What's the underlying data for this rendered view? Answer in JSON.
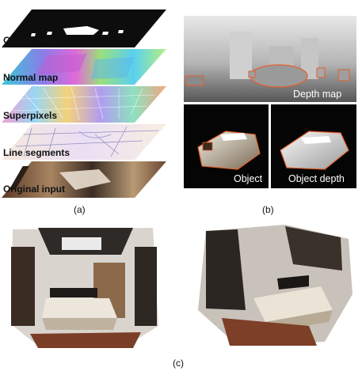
{
  "panel_a": {
    "layers": [
      {
        "label": "Object mask"
      },
      {
        "label": "Normal map"
      },
      {
        "label": "Superpixels"
      },
      {
        "label": "Line segments"
      },
      {
        "label": "Original input"
      }
    ],
    "caption": "(a)"
  },
  "panel_b": {
    "depth_map_label": "Depth map",
    "object_label": "Object",
    "object_depth_label": "Object depth",
    "caption": "(b)"
  },
  "panel_c": {
    "caption": "(c)"
  },
  "colors": {
    "outline": "#e2602c",
    "dark": "#0a0a0a"
  }
}
